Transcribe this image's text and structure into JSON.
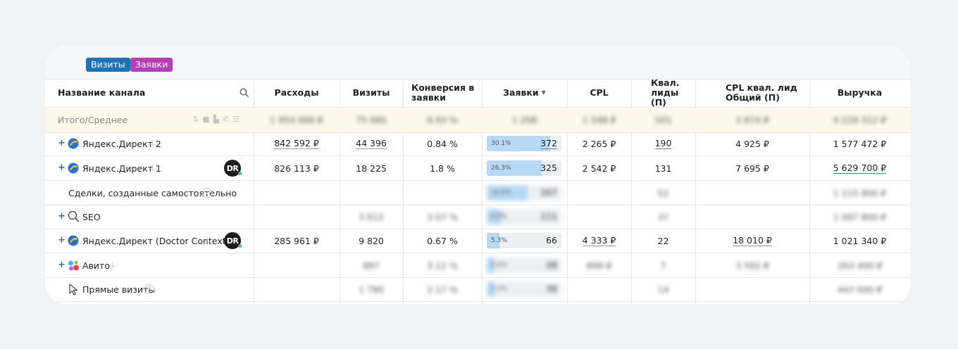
{
  "tabs": [
    {
      "label": "Визиты",
      "color": "#1e73b4"
    },
    {
      "label": "Заявки",
      "color": "#b43eb4"
    }
  ],
  "columns": {
    "channel": "Название канала",
    "expenses": "Расходы",
    "visits": "Визиты",
    "conversion": "Конверсия в заявки",
    "leads": "Заявки",
    "cpl": "CPL",
    "qual_leads": "Квал. лиды (П)",
    "cpl_qual": "CPL квал. лид Общий (П)",
    "revenue": "Выручка"
  },
  "total_row": {
    "label": "Итого/Среднее",
    "expenses": "1 954 666 ₽",
    "visits": "75 685",
    "conversion": "0.93 %",
    "leads": "1 208",
    "cpl": "1 598 ₽",
    "qual_leads": "501",
    "cpl_qual": "3 874 ₽",
    "revenue": "9 228 512 ₽"
  },
  "rows": [
    {
      "name": "Яндекс.Директ 2",
      "icon": "yandex-direct-icon",
      "expenses": "842 592 ₽",
      "visits": "44 396",
      "conversion": "0.84 %",
      "lead_pct": "30.1%",
      "lead_fraction": 0.85,
      "leads": "372",
      "cpl": "2 265 ₽",
      "qual_leads": "190",
      "cpl_qual": "4 925 ₽",
      "revenue": "1 577 472 ₽"
    },
    {
      "name": "Яндекс.Директ 1",
      "icon": "yandex-direct-icon",
      "badge": "DR",
      "expenses": "826 113 ₽",
      "visits": "18 225",
      "conversion": "1.8 %",
      "lead_pct": "26.3%",
      "lead_fraction": 0.74,
      "leads": "325",
      "cpl": "2 542 ₽",
      "qual_leads": "131",
      "cpl_qual": "7 695 ₽",
      "revenue": "5 629 700 ₽"
    },
    {
      "name": "Сделки, созданные самостоятельно",
      "icon": "help-icon",
      "lead_pct": "16.8%",
      "lead_fraction": 0.55,
      "leads": "207",
      "qual_leads": "52",
      "revenue": "1 215 800 ₽"
    },
    {
      "name": "SEO",
      "icon": "search-icon",
      "visits": "3 612",
      "conversion": "3.07 %",
      "lead_pct": "9.0%",
      "lead_fraction": 0.2,
      "leads": "111",
      "qual_leads": "37",
      "revenue": "1 097 800 ₽"
    },
    {
      "name": "Яндекс.Директ (Doctor Context)",
      "icon": "yandex-direct-icon",
      "badge": "DR",
      "expenses": "285 961 ₽",
      "visits": "9 820",
      "conversion": "0.67 %",
      "lead_pct": "5.3%",
      "lead_fraction": 0.17,
      "leads": "66",
      "cpl": "4 333 ₽",
      "qual_leads": "22",
      "cpl_qual": "18 010 ₽",
      "revenue": "1 021 340 ₽"
    },
    {
      "name": "Авито",
      "icon": "avito-icon",
      "visits": "897",
      "conversion": "3.12 %",
      "lead_pct": "2.6%",
      "lead_fraction": 0.1,
      "leads": "28",
      "cpl": "898 ₽",
      "qual_leads": "7",
      "cpl_qual": "3 592 ₽",
      "revenue": "263 400 ₽"
    },
    {
      "name": "Прямые визиты",
      "icon": "cursor-icon",
      "visits": "1 780",
      "conversion": "2.17 %",
      "lead_pct": "3.2%",
      "lead_fraction": 0.1,
      "leads": "39",
      "qual_leads": "14",
      "revenue": "443 000 ₽"
    }
  ],
  "colors": {
    "accent_blue": "#1e73b4",
    "accent_purple": "#b43eb4",
    "total_bg": "#fdf8ea",
    "bar_fill": "#b7d9f3",
    "underline_orange": "#e08a3a",
    "underline_green": "#3aa36a"
  }
}
